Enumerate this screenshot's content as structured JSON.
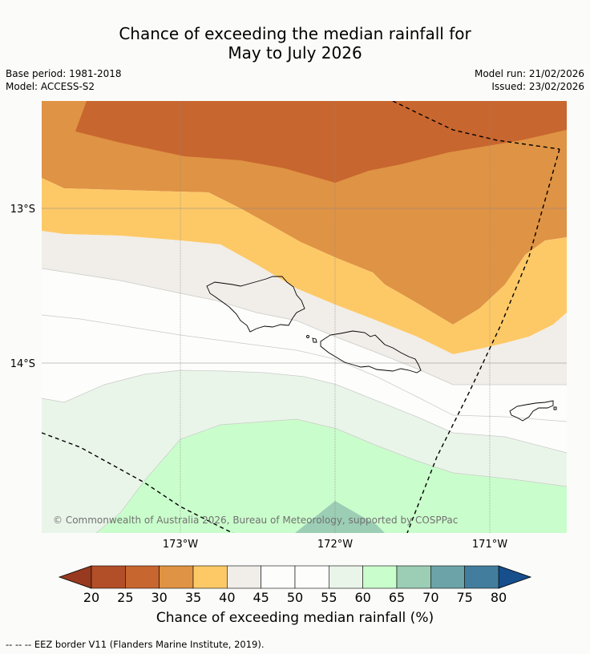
{
  "title": {
    "line1": "Chance of exceeding the median rainfall for",
    "line2": "May to July 2026"
  },
  "meta": {
    "base_period": "Base period: 1981-2018",
    "model": "Model: ACCESS-S2",
    "model_run": "Model run: 21/02/2026",
    "issued": "Issued: 23/02/2026"
  },
  "map": {
    "lat_labels": [
      "13°S",
      "14°S"
    ],
    "lon_labels": [
      "173°W",
      "172°W",
      "171°W"
    ],
    "copyright": "© Commonwealth of Australia 2026, Bureau of Meteorology, supported by COSPPac"
  },
  "legend": {
    "bins": [
      {
        "from": null,
        "to": 20,
        "color": "#973a1f"
      },
      {
        "from": 20,
        "to": 25,
        "color": "#b24f28"
      },
      {
        "from": 25,
        "to": 30,
        "color": "#c8662f"
      },
      {
        "from": 30,
        "to": 35,
        "color": "#df9344"
      },
      {
        "from": 35,
        "to": 40,
        "color": "#fdc967"
      },
      {
        "from": 40,
        "to": 45,
        "color": "#f1ede8"
      },
      {
        "from": 45,
        "to": 50,
        "color": "#fdfdfc"
      },
      {
        "from": 50,
        "to": 55,
        "color": "#fdfdfc"
      },
      {
        "from": 55,
        "to": 60,
        "color": "#eaf5ea"
      },
      {
        "from": 60,
        "to": 65,
        "color": "#cafdcc"
      },
      {
        "from": 65,
        "to": 70,
        "color": "#9ccdb5"
      },
      {
        "from": 70,
        "to": 75,
        "color": "#6ba3a8"
      },
      {
        "from": 75,
        "to": 80,
        "color": "#437d9e"
      },
      {
        "from": 80,
        "to": null,
        "color": "#174e8c"
      }
    ],
    "tick_labels": [
      "20",
      "25",
      "30",
      "35",
      "40",
      "45",
      "50",
      "55",
      "60",
      "65",
      "70",
      "75",
      "80"
    ],
    "label": "Chance of exceeding median rainfall (%)"
  },
  "footnote": "--  --  -- EEZ border V11 (Flanders Marine Institute, 2019)."
}
